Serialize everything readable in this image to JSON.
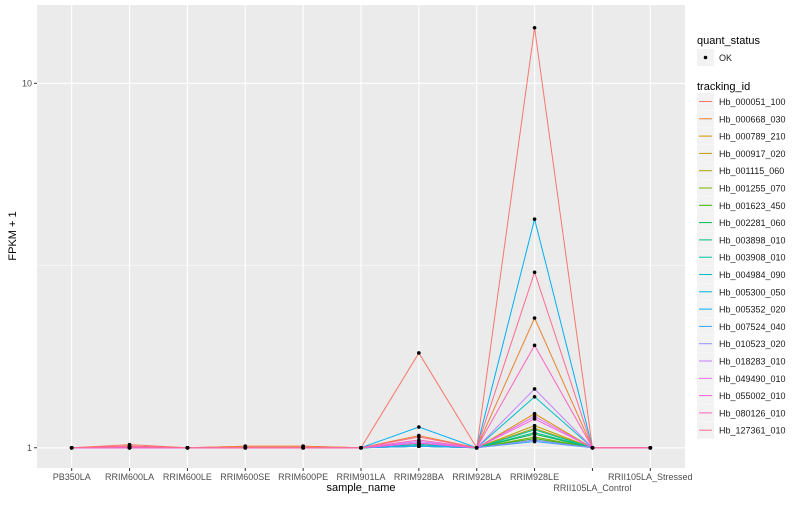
{
  "chart_data": {
    "type": "line",
    "xlabel": "sample_name",
    "ylabel": "FPKM + 1",
    "y_scale": "log10",
    "ylim": [
      0.88,
      16.4
    ],
    "y_ticks": [
      {
        "value": 1,
        "label": "1"
      },
      {
        "value": 10,
        "label": "10"
      }
    ],
    "grid": true,
    "background": "#EBEBEB",
    "legend_position": "right",
    "categories": [
      "PB350LA",
      "RRIM600LA",
      "RRIM600LE",
      "RRIM600SE",
      "RRIM600PE",
      "RRIM901LA",
      "RRIM928BA",
      "RRIM928LA",
      "RRIM928LE",
      "RRII105LA_Control",
      "RRII105LA_Stressed"
    ],
    "points_legend": {
      "title": "quant_status",
      "entries": [
        "OK"
      ]
    },
    "lines_legend_title": "tracking_id",
    "series": [
      {
        "name": "Hb_000051_100",
        "color": "#F8766D",
        "values": [
          1,
          1.02,
          1,
          1.01,
          1.01,
          1,
          1.82,
          1,
          14.2,
          1,
          1
        ]
      },
      {
        "name": "Hb_000668_030",
        "color": "#EA8331",
        "values": [
          1,
          1.01,
          1,
          1.01,
          1.01,
          1,
          1.08,
          1,
          2.27,
          1,
          1
        ]
      },
      {
        "name": "Hb_000789_210",
        "color": "#D89000",
        "values": [
          1,
          1.01,
          1,
          1,
          1,
          1,
          1.03,
          1,
          1.24,
          1,
          1
        ]
      },
      {
        "name": "Hb_000917_020",
        "color": "#C09B00",
        "values": [
          1,
          1,
          1,
          1,
          1,
          1,
          1.02,
          1,
          1.15,
          1,
          1
        ]
      },
      {
        "name": "Hb_001115_060",
        "color": "#A3A500",
        "values": [
          1,
          1,
          1,
          1,
          1,
          1,
          1.02,
          1,
          1.13,
          1,
          1
        ]
      },
      {
        "name": "Hb_001255_070",
        "color": "#7CAE00",
        "values": [
          1,
          1,
          1,
          1,
          1,
          1,
          1.01,
          1,
          1.07,
          1,
          1
        ]
      },
      {
        "name": "Hb_001623_450",
        "color": "#39B600",
        "values": [
          1,
          1,
          1,
          1,
          1,
          1,
          1.01,
          1,
          1.06,
          1,
          1
        ]
      },
      {
        "name": "Hb_002281_060",
        "color": "#00BB4E",
        "values": [
          1,
          1,
          1,
          1,
          1,
          1,
          1.01,
          1,
          1.09,
          1,
          1
        ]
      },
      {
        "name": "Hb_003898_010",
        "color": "#00BF7D",
        "values": [
          1,
          1,
          1,
          1,
          1,
          1,
          1.02,
          1,
          1.1,
          1,
          1
        ]
      },
      {
        "name": "Hb_003908_010",
        "color": "#00C1A3",
        "values": [
          1,
          1,
          1,
          1,
          1,
          1,
          1.02,
          1,
          1.12,
          1,
          1
        ]
      },
      {
        "name": "Hb_004984_090",
        "color": "#00BFC4",
        "values": [
          1,
          1,
          1,
          1,
          1,
          1,
          1.02,
          1,
          1.38,
          1,
          1
        ]
      },
      {
        "name": "Hb_005300_050",
        "color": "#00BAE0",
        "values": [
          1,
          1,
          1,
          1,
          1,
          1,
          1.01,
          1,
          1.05,
          1,
          1
        ]
      },
      {
        "name": "Hb_005352_020",
        "color": "#00B0F6",
        "values": [
          1,
          1,
          1,
          1,
          1,
          1,
          1.14,
          1,
          4.24,
          1,
          1
        ]
      },
      {
        "name": "Hb_007524_040",
        "color": "#35A2FF",
        "values": [
          1,
          1,
          1,
          1,
          1,
          1,
          1.01,
          1,
          1.04,
          1,
          1
        ]
      },
      {
        "name": "Hb_010523_020",
        "color": "#9590FF",
        "values": [
          1,
          1,
          1,
          1,
          1,
          1,
          1.03,
          1,
          1.05,
          1,
          1
        ]
      },
      {
        "name": "Hb_018283_010",
        "color": "#C77CFF",
        "values": [
          1,
          1,
          1,
          1,
          1,
          1,
          1.04,
          1,
          1.45,
          1,
          1
        ]
      },
      {
        "name": "Hb_049490_010",
        "color": "#E76BF3",
        "values": [
          1,
          1,
          1,
          1,
          1,
          1,
          1.03,
          1,
          1.22,
          1,
          1
        ]
      },
      {
        "name": "Hb_055002_010",
        "color": "#FA62DB",
        "values": [
          1,
          1,
          1,
          1,
          1,
          1,
          1.03,
          1,
          1.2,
          1,
          1
        ]
      },
      {
        "name": "Hb_080126_010",
        "color": "#FF62BC",
        "values": [
          1,
          1,
          1,
          1,
          1,
          1,
          1.05,
          1,
          1.91,
          1,
          1
        ]
      },
      {
        "name": "Hb_127361_010",
        "color": "#FF6C91",
        "values": [
          1,
          1.01,
          1,
          1,
          1,
          1,
          1.07,
          1,
          3.03,
          1,
          1
        ]
      }
    ]
  }
}
